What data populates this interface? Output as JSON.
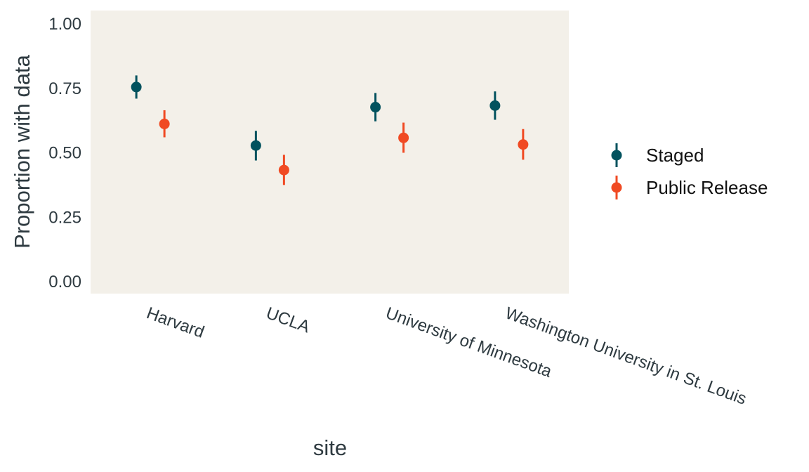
{
  "chart_data": {
    "type": "scatter",
    "subtype": "point-range (dodged by series)",
    "title": "",
    "xlabel": "site",
    "ylabel": "Proportion with data",
    "categories": [
      "Harvard",
      "UCLA",
      "University of Minnesota",
      "Washington University in St. Louis"
    ],
    "ylim": [
      0,
      1
    ],
    "yticks": [
      "0.00",
      "0.25",
      "0.50",
      "0.75",
      "1.00"
    ],
    "x_tick_label_rotation_deg": 20,
    "grid": false,
    "panel_background": "#f3f0e9",
    "legend_position": "right",
    "series": [
      {
        "name": "Staged",
        "color": "#02525e",
        "values": [
          0.755,
          0.528,
          0.677,
          0.683
        ],
        "lower": [
          0.71,
          0.47,
          0.622,
          0.628
        ],
        "upper": [
          0.8,
          0.585,
          0.732,
          0.738
        ]
      },
      {
        "name": "Public Release",
        "color": "#f04a23",
        "values": [
          0.612,
          0.433,
          0.558,
          0.532
        ],
        "lower": [
          0.56,
          0.375,
          0.5,
          0.473
        ],
        "upper": [
          0.665,
          0.492,
          0.617,
          0.592
        ]
      }
    ]
  }
}
